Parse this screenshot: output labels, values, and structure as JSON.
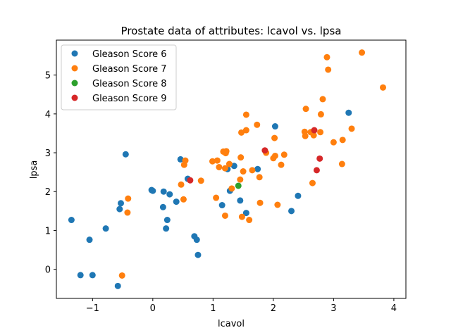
{
  "chart_data": {
    "type": "scatter",
    "title": "Prostate data of attributes: lcavol vs. lpsa",
    "xlabel": "lcavol",
    "ylabel": "lpsa",
    "xlim": [
      -1.6,
      4.2
    ],
    "ylim": [
      -0.75,
      5.9
    ],
    "xticks": [
      -1,
      0,
      1,
      2,
      3,
      4
    ],
    "yticks": [
      0,
      1,
      2,
      3,
      4,
      5
    ],
    "grid": false,
    "legend_position": "top-left",
    "series": [
      {
        "name": "Gleason Score 6",
        "color": "#1f77b4",
        "points": [
          [
            -1.35,
            1.27
          ],
          [
            -1.2,
            -0.15
          ],
          [
            -1.05,
            0.76
          ],
          [
            -1.0,
            -0.15
          ],
          [
            -0.78,
            1.05
          ],
          [
            -0.58,
            -0.43
          ],
          [
            -0.55,
            1.55
          ],
          [
            -0.53,
            1.7
          ],
          [
            -0.45,
            2.96
          ],
          [
            -0.02,
            2.04
          ],
          [
            0.0,
            2.02
          ],
          [
            0.17,
            1.6
          ],
          [
            0.18,
            2.0
          ],
          [
            0.22,
            1.05
          ],
          [
            0.24,
            1.27
          ],
          [
            0.28,
            1.93
          ],
          [
            0.39,
            1.74
          ],
          [
            0.46,
            2.83
          ],
          [
            0.58,
            2.33
          ],
          [
            0.69,
            0.85
          ],
          [
            0.73,
            0.76
          ],
          [
            0.75,
            0.37
          ],
          [
            1.15,
            1.65
          ],
          [
            1.24,
            2.58
          ],
          [
            1.28,
            2.02
          ],
          [
            1.35,
            2.66
          ],
          [
            1.45,
            1.77
          ],
          [
            1.55,
            1.45
          ],
          [
            1.74,
            2.58
          ],
          [
            2.03,
            3.68
          ],
          [
            2.3,
            1.5
          ],
          [
            2.41,
            1.89
          ],
          [
            3.25,
            4.03
          ]
        ]
      },
      {
        "name": "Gleason Score 7",
        "color": "#ff7f0e",
        "points": [
          [
            -0.51,
            -0.16
          ],
          [
            -0.42,
            1.46
          ],
          [
            -0.41,
            1.82
          ],
          [
            0.47,
            2.18
          ],
          [
            0.51,
            1.8
          ],
          [
            0.52,
            2.69
          ],
          [
            0.54,
            2.8
          ],
          [
            0.8,
            2.28
          ],
          [
            0.99,
            2.78
          ],
          [
            1.05,
            1.84
          ],
          [
            1.07,
            2.8
          ],
          [
            1.1,
            2.63
          ],
          [
            1.17,
            3.03
          ],
          [
            1.2,
            2.6
          ],
          [
            1.2,
            1.38
          ],
          [
            1.21,
            2.99
          ],
          [
            1.22,
            3.04
          ],
          [
            1.27,
            2.71
          ],
          [
            1.31,
            2.08
          ],
          [
            1.45,
            2.31
          ],
          [
            1.46,
            2.88
          ],
          [
            1.47,
            3.52
          ],
          [
            1.48,
            1.35
          ],
          [
            1.5,
            2.52
          ],
          [
            1.55,
            3.98
          ],
          [
            1.55,
            3.58
          ],
          [
            1.6,
            1.27
          ],
          [
            1.65,
            2.55
          ],
          [
            1.73,
            3.72
          ],
          [
            1.77,
            2.37
          ],
          [
            1.78,
            1.71
          ],
          [
            1.88,
            3.0
          ],
          [
            2.0,
            2.86
          ],
          [
            2.02,
            3.38
          ],
          [
            2.03,
            2.92
          ],
          [
            2.07,
            1.66
          ],
          [
            2.13,
            2.69
          ],
          [
            2.18,
            2.95
          ],
          [
            2.52,
            3.54
          ],
          [
            2.53,
            3.43
          ],
          [
            2.54,
            4.13
          ],
          [
            2.62,
            3.53
          ],
          [
            2.65,
            2.22
          ],
          [
            2.67,
            3.45
          ],
          [
            2.78,
            3.53
          ],
          [
            2.79,
            3.99
          ],
          [
            2.82,
            4.38
          ],
          [
            2.89,
            5.46
          ],
          [
            2.91,
            5.14
          ],
          [
            3.0,
            3.27
          ],
          [
            3.14,
            2.71
          ],
          [
            3.15,
            3.33
          ],
          [
            3.3,
            3.62
          ],
          [
            3.47,
            5.58
          ],
          [
            3.82,
            4.68
          ]
        ]
      },
      {
        "name": "Gleason Score 8",
        "color": "#2ca02c",
        "points": [
          [
            1.42,
            2.15
          ]
        ]
      },
      {
        "name": "Gleason Score 9",
        "color": "#d62728",
        "points": [
          [
            0.62,
            2.29
          ],
          [
            1.86,
            3.06
          ],
          [
            2.68,
            3.58
          ],
          [
            2.72,
            2.55
          ],
          [
            2.77,
            2.85
          ]
        ]
      }
    ]
  }
}
